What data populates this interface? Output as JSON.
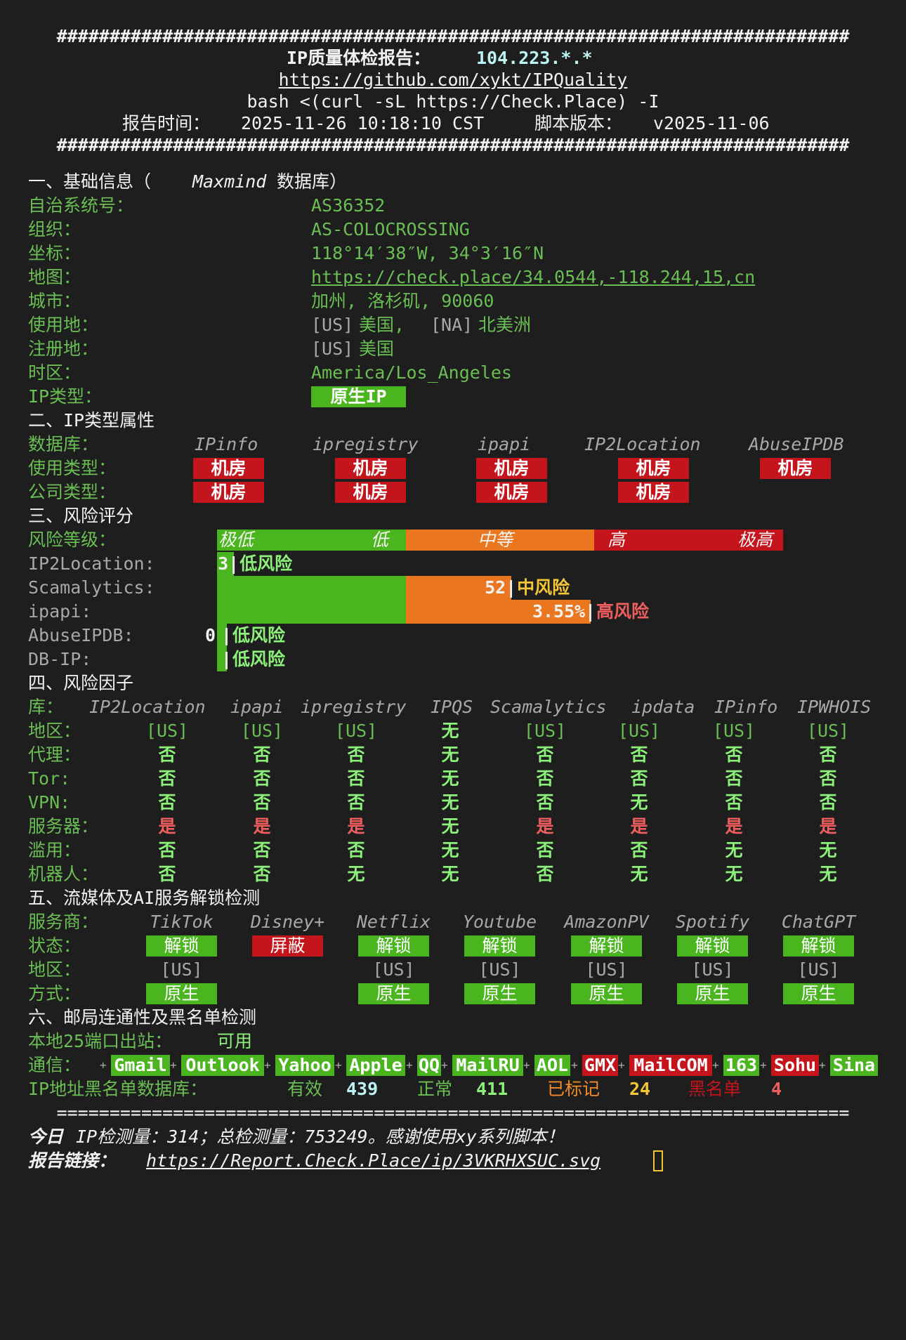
{
  "header": {
    "hash_line": "###########################################################################",
    "title_label": "IP质量体检报告：",
    "title_ip": "104.223.*.*",
    "github_url": "https://github.com/xykt/IPQuality",
    "command": "bash <(curl -sL https://Check.Place) -I",
    "report_time_label": "报告时间：",
    "report_time": "2025-11-26 10:18:10 CST",
    "version_label": "脚本版本：",
    "version": "v2025-11-06"
  },
  "section1": {
    "title_a": "一、基础信息（",
    "title_b": "Maxmind",
    "title_c": " 数据库）",
    "rows": [
      {
        "label": "自治系统号：",
        "value": "AS36352"
      },
      {
        "label": "组织：",
        "value": "AS-COLOCROSSING"
      },
      {
        "label": "坐标：",
        "value": "118°14′38″W, 34°3′16″N"
      },
      {
        "label": "地图：",
        "value": "https://check.place/34.0544,-118.244,15,cn"
      },
      {
        "label": "城市：",
        "value": "加州, 洛杉矶, 90060"
      },
      {
        "label": "使用地：",
        "value_a": "[US]",
        "value_b": "美国, ",
        "value_c": "[NA]",
        "value_d": "北美洲"
      },
      {
        "label": "注册地：",
        "value_a": "[US]",
        "value_b": "美国"
      },
      {
        "label": "时区：",
        "value": "America/Los_Angeles"
      },
      {
        "label": "IP类型：",
        "value": "原生IP"
      }
    ]
  },
  "section2": {
    "title": "二、IP类型属性",
    "db_label": "数据库：",
    "usage_label": "使用类型：",
    "company_label": "公司类型：",
    "databases": [
      "IPinfo",
      "ipregistry",
      "ipapi",
      "IP2Location",
      "AbuseIPDB"
    ],
    "usage": [
      "机房",
      "机房",
      "机房",
      "机房",
      "机房"
    ],
    "company": [
      "机房",
      "机房",
      "机房",
      "机房",
      ""
    ]
  },
  "section3": {
    "title": "三、风险评分",
    "level_label": "风险等级：",
    "scale": [
      "极低",
      "低",
      "中等",
      "高",
      "极高"
    ],
    "scores": [
      {
        "label": "IP2Location:",
        "score": "3",
        "verdict": "低风险",
        "level": 3,
        "color": "#8cf07a"
      },
      {
        "label": "Scamalytics:",
        "score": "52",
        "verdict": "中风险",
        "level": 52,
        "color": "#f4c535"
      },
      {
        "label": "ipapi:",
        "score": "3.55%",
        "verdict": "高风险",
        "level": 66,
        "color": "#ef5e5e"
      },
      {
        "label": "AbuseIPDB:",
        "score": "0",
        "verdict": "低风险",
        "level": 0,
        "color": "#8cf07a"
      },
      {
        "label": "DB-IP:",
        "score": "",
        "verdict": "低风险",
        "level": 0,
        "color": "#8cf07a"
      }
    ]
  },
  "section4": {
    "title": "四、风险因子",
    "lib_label": "库：",
    "libs": [
      "IP2Location",
      "ipapi",
      "ipregistry",
      "IPQS",
      "Scamalytics",
      "ipdata",
      "IPinfo",
      "IPWHOIS"
    ],
    "rows": [
      {
        "label": "地区：",
        "values": [
          "[US]",
          "[US]",
          "[US]",
          "无",
          "[US]",
          "[US]",
          "[US]",
          "[US]"
        ]
      },
      {
        "label": "代理：",
        "values": [
          "否",
          "否",
          "否",
          "无",
          "否",
          "否",
          "否",
          "否"
        ]
      },
      {
        "label": "Tor:",
        "values": [
          "否",
          "否",
          "否",
          "无",
          "否",
          "否",
          "否",
          "否"
        ]
      },
      {
        "label": "VPN:",
        "values": [
          "否",
          "否",
          "否",
          "无",
          "否",
          "无",
          "否",
          "否"
        ]
      },
      {
        "label": "服务器：",
        "values": [
          "是",
          "是",
          "是",
          "无",
          "是",
          "是",
          "是",
          "是"
        ]
      },
      {
        "label": "滥用：",
        "values": [
          "否",
          "否",
          "否",
          "无",
          "否",
          "否",
          "无",
          "无"
        ]
      },
      {
        "label": "机器人：",
        "values": [
          "否",
          "否",
          "无",
          "无",
          "否",
          "无",
          "无",
          "无"
        ]
      }
    ]
  },
  "section5": {
    "title": "五、流媒体及AI服务解锁检测",
    "provider_label": "服务商：",
    "status_label": "状态：",
    "region_label": "地区：",
    "method_label": "方式：",
    "services": [
      {
        "name": "TikTok",
        "status": "解锁",
        "ok": true,
        "region": "[US]",
        "method": "原生"
      },
      {
        "name": "Disney+",
        "status": "屏蔽",
        "ok": false,
        "region": "",
        "method": ""
      },
      {
        "name": "Netflix",
        "status": "解锁",
        "ok": true,
        "region": "[US]",
        "method": "原生"
      },
      {
        "name": "Youtube",
        "status": "解锁",
        "ok": true,
        "region": "[US]",
        "method": "原生"
      },
      {
        "name": "AmazonPV",
        "status": "解锁",
        "ok": true,
        "region": "[US]",
        "method": "原生"
      },
      {
        "name": "Spotify",
        "status": "解锁",
        "ok": true,
        "region": "[US]",
        "method": "原生"
      },
      {
        "name": "ChatGPT",
        "status": "解锁",
        "ok": true,
        "region": "[US]",
        "method": "原生"
      }
    ]
  },
  "section6": {
    "title": "六、邮局连通性及黑名单检测",
    "port_label": "本地25端口出站：",
    "port_value": "可用",
    "comm_label": "通信：",
    "mail": [
      {
        "name": "Gmail",
        "ok": true
      },
      {
        "name": "Outlook",
        "ok": true
      },
      {
        "name": "Yahoo",
        "ok": true
      },
      {
        "name": "Apple",
        "ok": true
      },
      {
        "name": "QQ",
        "ok": true
      },
      {
        "name": "MailRU",
        "ok": true
      },
      {
        "name": "AOL",
        "ok": true
      },
      {
        "name": "GMX",
        "ok": false
      },
      {
        "name": "MailCOM",
        "ok": false
      },
      {
        "name": "163",
        "ok": true
      },
      {
        "name": "Sohu",
        "ok": false
      },
      {
        "name": "Sina",
        "ok": true
      }
    ],
    "bl_label": "IP地址黑名单数据库：",
    "valid_label": "有效",
    "valid_value": "439",
    "normal_label": "正常",
    "normal_value": "411",
    "marked_label": "已标记",
    "marked_value": "24",
    "black_label": "黑名单",
    "black_value": "4"
  },
  "footer": {
    "eq_line": "===========================================================================",
    "today_a": "今日",
    "today_b": "IP检测量：314；总检测量：753249。感谢使用xy系列脚本！",
    "link_label": "报告链接：",
    "link": "https://Report.Check.Place/ip/3VKRHXSUC.svg"
  }
}
